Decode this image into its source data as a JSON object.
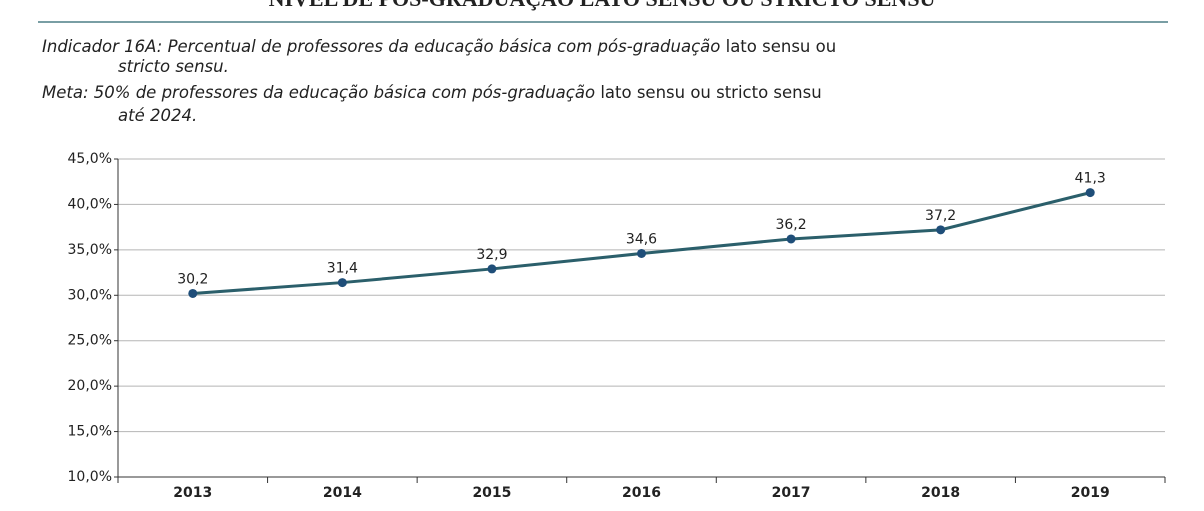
{
  "document": {
    "title": "NÍVEL DE PÓS-GRADUAÇÃO LATO SENSU OU STRICTO SENSU",
    "indicator": {
      "label": "Indicador 16A:",
      "parts": [
        "Percentual de professores da educação básica com pós-graduação",
        "lato sensu ou",
        "stricto sensu."
      ]
    },
    "goal": {
      "label": "Meta:",
      "parts": [
        "50% de professores da educação básica com pós-graduação",
        "lato sensu ou stricto sensu",
        "até 2024."
      ]
    }
  },
  "chart_data": {
    "type": "line",
    "categories": [
      "2013",
      "2014",
      "2015",
      "2016",
      "2017",
      "2018",
      "2019"
    ],
    "values": [
      30.2,
      31.4,
      32.9,
      34.6,
      36.2,
      37.2,
      41.3
    ],
    "value_labels": [
      "30,2",
      "31,4",
      "32,9",
      "34,6",
      "36,2",
      "37,2",
      "41,3"
    ],
    "color": "#2b5f6b",
    "marker_color": "#1f4e79",
    "ylim": [
      10,
      45
    ],
    "yticks": [
      {
        "value": 10,
        "label": "10,0%"
      },
      {
        "value": 15,
        "label": "15,0%"
      },
      {
        "value": 20,
        "label": "20,0%"
      },
      {
        "value": 25,
        "label": "25,0%"
      },
      {
        "value": 30,
        "label": "30,0%"
      },
      {
        "value": 35,
        "label": "35,0%"
      },
      {
        "value": 40,
        "label": "40,0%"
      },
      {
        "value": 45,
        "label": "45,0%"
      }
    ],
    "grid": true
  }
}
